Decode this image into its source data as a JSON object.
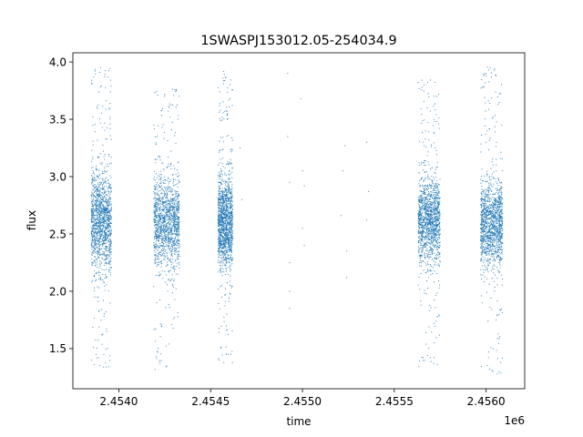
{
  "chart_data": {
    "type": "scatter",
    "title": "1SWASPJ153012.05-254034.9",
    "xlabel": "time",
    "ylabel": "flux",
    "x_offset_label": "1e6",
    "xlim": [
      2.45375,
      2.45621
    ],
    "ylim": [
      1.15,
      4.08
    ],
    "grid": false,
    "legend": "none",
    "marker_color": "#1f77b4",
    "x_ticks": [
      {
        "value": 2.454,
        "label": "2.4540"
      },
      {
        "value": 2.4545,
        "label": "2.4545"
      },
      {
        "value": 2.455,
        "label": "2.4550"
      },
      {
        "value": 2.4555,
        "label": "2.4555"
      },
      {
        "value": 2.456,
        "label": "2.4560"
      }
    ],
    "y_ticks": [
      {
        "value": 1.5,
        "label": "1.5"
      },
      {
        "value": 2.0,
        "label": "2.0"
      },
      {
        "value": 2.5,
        "label": "2.5"
      },
      {
        "value": 3.0,
        "label": "3.0"
      },
      {
        "value": 3.5,
        "label": "3.5"
      },
      {
        "value": 4.0,
        "label": "4.0"
      }
    ],
    "observing_seasons": [
      {
        "x_start": 2.45385,
        "x_end": 2.45396,
        "flux_center": 2.6,
        "flux_spread": 0.22,
        "flux_min": 1.33,
        "flux_max": 3.96
      },
      {
        "x_start": 2.45419,
        "x_end": 2.45433,
        "flux_center": 2.6,
        "flux_spread": 0.2,
        "flux_min": 1.3,
        "flux_max": 3.78
      },
      {
        "x_start": 2.45454,
        "x_end": 2.45462,
        "flux_center": 2.6,
        "flux_spread": 0.2,
        "flux_min": 1.37,
        "flux_max": 3.92
      },
      {
        "x_start": 2.45563,
        "x_end": 2.45575,
        "flux_center": 2.62,
        "flux_spread": 0.18,
        "flux_min": 1.33,
        "flux_max": 3.87
      },
      {
        "x_start": 2.45597,
        "x_end": 2.45609,
        "flux_center": 2.58,
        "flux_spread": 0.18,
        "flux_min": 1.28,
        "flux_max": 3.96
      }
    ],
    "isolated_points": [
      {
        "x": 2.45466,
        "y": 3.25
      },
      {
        "x": 2.45467,
        "y": 2.8
      },
      {
        "x": 2.45492,
        "y": 3.9
      },
      {
        "x": 2.45492,
        "y": 3.35
      },
      {
        "x": 2.45493,
        "y": 2.95
      },
      {
        "x": 2.45493,
        "y": 2.25
      },
      {
        "x": 2.45493,
        "y": 2.0
      },
      {
        "x": 2.45493,
        "y": 1.85
      },
      {
        "x": 2.45499,
        "y": 3.68
      },
      {
        "x": 2.455,
        "y": 3.05
      },
      {
        "x": 2.45501,
        "y": 2.92
      },
      {
        "x": 2.455,
        "y": 2.55
      },
      {
        "x": 2.45501,
        "y": 2.4
      },
      {
        "x": 2.45523,
        "y": 3.27
      },
      {
        "x": 2.45522,
        "y": 3.05
      },
      {
        "x": 2.45521,
        "y": 2.66
      },
      {
        "x": 2.45524,
        "y": 2.35
      },
      {
        "x": 2.45524,
        "y": 2.12
      },
      {
        "x": 2.45535,
        "y": 3.3
      },
      {
        "x": 2.45536,
        "y": 2.87
      },
      {
        "x": 2.45535,
        "y": 2.62
      }
    ]
  }
}
